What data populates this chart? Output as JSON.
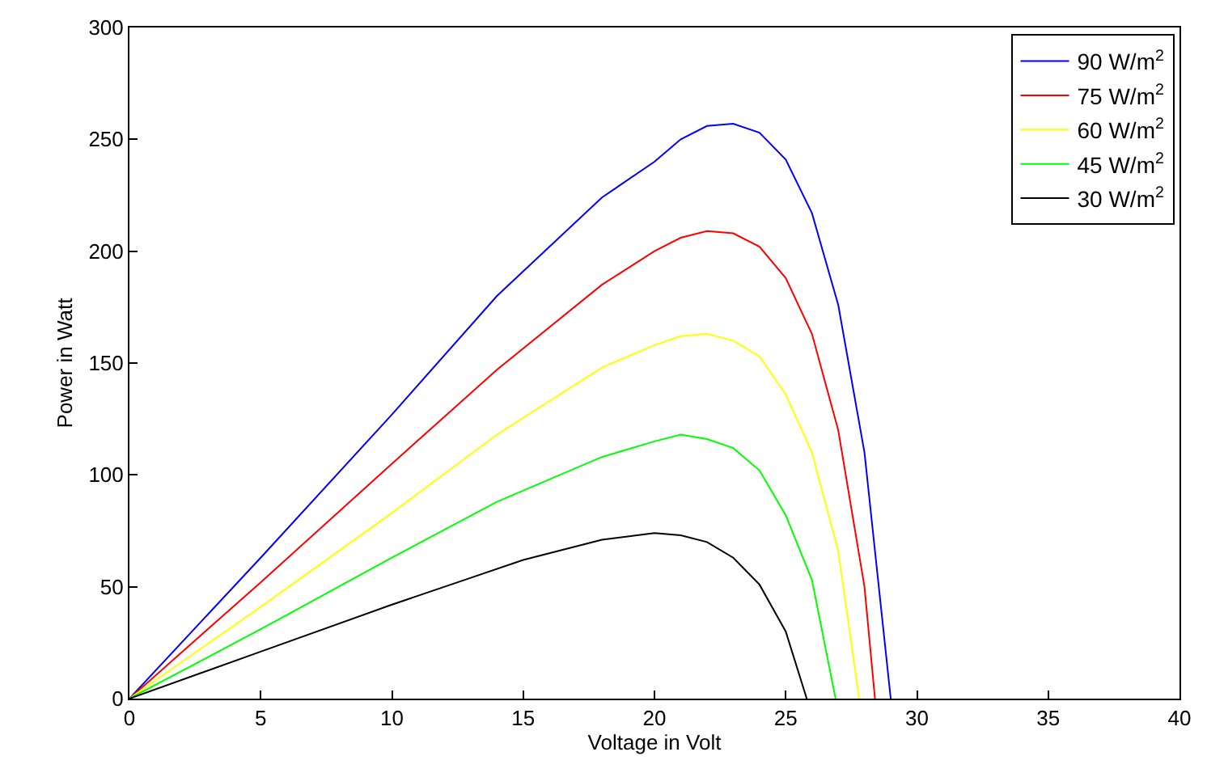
{
  "chart_data": {
    "type": "line",
    "xlabel": "Voltage in Volt",
    "ylabel": "Power in Watt",
    "xlim": [
      0,
      40
    ],
    "xticks": [
      0,
      5,
      10,
      15,
      20,
      25,
      30,
      35,
      40
    ],
    "ylim": [
      0,
      300
    ],
    "yticks": [
      0,
      50,
      100,
      150,
      200,
      250,
      300
    ],
    "legend": "top right",
    "marker": "none",
    "line_style": "solid",
    "series": [
      {
        "name": "90 W/m$^{2}$",
        "color": "#0000ff",
        "x": [
          0,
          5,
          10,
          14,
          18,
          20,
          21,
          22,
          23,
          24,
          25,
          26,
          27,
          28,
          29
        ],
        "values": [
          0,
          63,
          127,
          180,
          224,
          240,
          250,
          256,
          257,
          253,
          241,
          217,
          176,
          110,
          0
        ]
      },
      {
        "name": "75 W/m$^{2}$",
        "color": "#ff0000",
        "x": [
          0,
          5,
          10,
          14,
          18,
          20,
          21,
          22,
          23,
          24,
          25,
          26,
          27,
          28,
          28.4
        ],
        "values": [
          0,
          52,
          105,
          147,
          185,
          200,
          206,
          209,
          208,
          202,
          188,
          163,
          120,
          50,
          0
        ]
      },
      {
        "name": "60 W/m$^{2}$",
        "color": "#ffff00",
        "x": [
          0,
          5,
          10,
          14,
          18,
          20,
          21,
          22,
          23,
          24,
          25,
          26,
          27,
          27.8
        ],
        "values": [
          0,
          41,
          83,
          118,
          148,
          158,
          162,
          163,
          160,
          153,
          136,
          110,
          66,
          0
        ]
      },
      {
        "name": "45 W/m$^{2}$",
        "color": "#00ff00",
        "x": [
          0,
          5,
          10,
          14,
          18,
          20,
          21,
          22,
          23,
          24,
          25,
          26,
          26.9
        ],
        "values": [
          0,
          31,
          63,
          88,
          108,
          115,
          118,
          116,
          112,
          102,
          82,
          53,
          0
        ]
      },
      {
        "name": "30 W/m$^{2}$",
        "color": "#000000",
        "x": [
          0,
          5,
          10,
          13,
          15,
          18,
          20,
          21,
          22,
          23,
          24,
          25,
          25.8
        ],
        "values": [
          0,
          21,
          42,
          54,
          62,
          71,
          74,
          73,
          70,
          63,
          51,
          30,
          0
        ]
      }
    ]
  }
}
